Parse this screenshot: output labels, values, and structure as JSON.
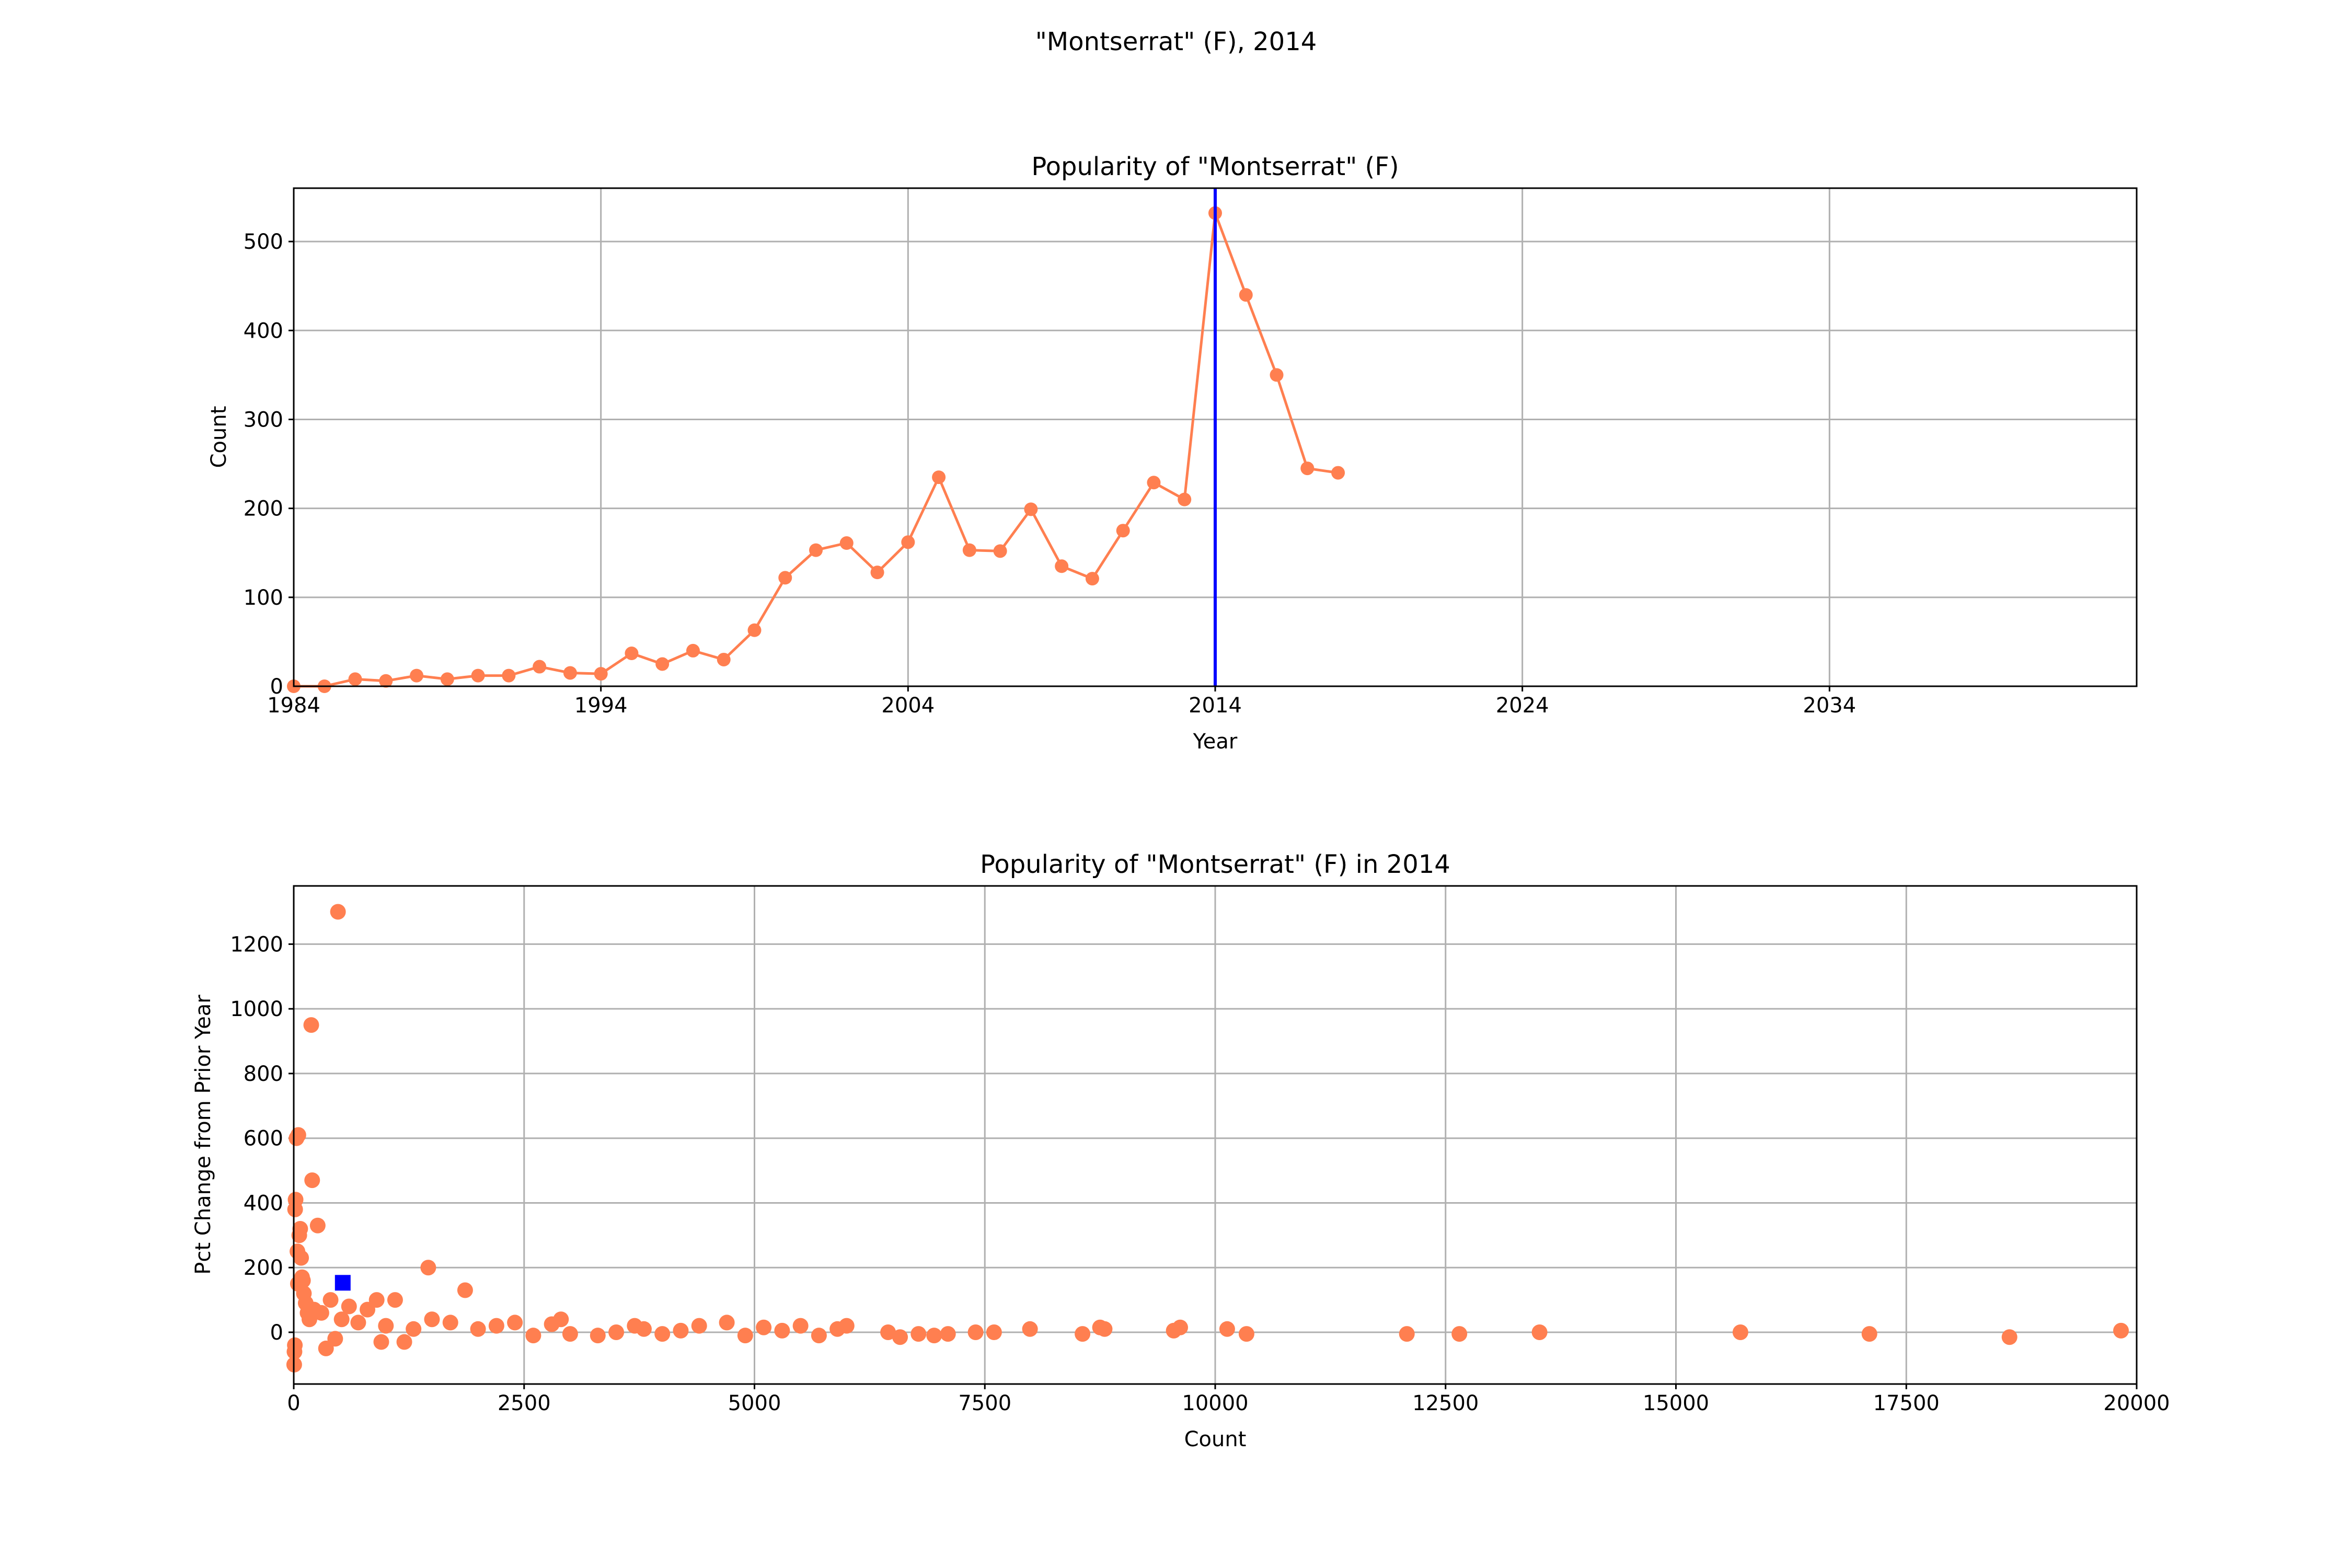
{
  "figure": {
    "suptitle": "\"Montserrat\" (F), 2014",
    "colors": {
      "series": "#ff7f50",
      "highlight": "#0000ff",
      "grid": "#b0b0b0"
    }
  },
  "chart_data": [
    {
      "type": "line",
      "title": "Popularity of \"Montserrat\" (F)",
      "xlabel": "Year",
      "ylabel": "Count",
      "xlim": [
        1984,
        2044
      ],
      "ylim": [
        0,
        560
      ],
      "xticks": [
        1984,
        1994,
        2004,
        2014,
        2024,
        2034
      ],
      "yticks": [
        0,
        100,
        200,
        300,
        400,
        500
      ],
      "grid": true,
      "highlight_x": 2014,
      "x": [
        1984,
        1985,
        1986,
        1987,
        1988,
        1989,
        1990,
        1991,
        1992,
        1993,
        1994,
        1995,
        1996,
        1997,
        1998,
        1999,
        2000,
        2001,
        2002,
        2003,
        2004,
        2005,
        2006,
        2007,
        2008,
        2009,
        2010,
        2011,
        2012,
        2013,
        2014,
        2015,
        2016,
        2017,
        2018
      ],
      "y": [
        0,
        0,
        8,
        6,
        12,
        8,
        12,
        12,
        22,
        15,
        14,
        37,
        25,
        40,
        30,
        63,
        122,
        153,
        161,
        128,
        162,
        235,
        153,
        152,
        199,
        135,
        121,
        175,
        229,
        210,
        532,
        440,
        350,
        245,
        240
      ]
    },
    {
      "type": "scatter",
      "title": "Popularity of \"Montserrat\" (F) in 2014",
      "xlabel": "Count",
      "ylabel": "Pct Change from Prior Year",
      "xlim": [
        0,
        20000
      ],
      "ylim": [
        -160,
        1380
      ],
      "xticks": [
        0,
        2500,
        5000,
        7500,
        10000,
        12500,
        15000,
        17500,
        20000
      ],
      "yticks": [
        0,
        200,
        400,
        600,
        800,
        1000,
        1200
      ],
      "grid": true,
      "highlight_point": [
        532,
        153
      ],
      "points": [
        [
          5,
          -100
        ],
        [
          8,
          -60
        ],
        [
          12,
          -40
        ],
        [
          15,
          380
        ],
        [
          20,
          410
        ],
        [
          30,
          600
        ],
        [
          40,
          250
        ],
        [
          45,
          150
        ],
        [
          50,
          610
        ],
        [
          60,
          300
        ],
        [
          70,
          320
        ],
        [
          80,
          230
        ],
        [
          90,
          170
        ],
        [
          100,
          160
        ],
        [
          110,
          120
        ],
        [
          130,
          90
        ],
        [
          150,
          60
        ],
        [
          170,
          40
        ],
        [
          190,
          950
        ],
        [
          200,
          470
        ],
        [
          220,
          70
        ],
        [
          260,
          330
        ],
        [
          300,
          60
        ],
        [
          350,
          -50
        ],
        [
          400,
          100
        ],
        [
          450,
          -20
        ],
        [
          480,
          1300
        ],
        [
          520,
          40
        ],
        [
          600,
          80
        ],
        [
          700,
          30
        ],
        [
          800,
          70
        ],
        [
          900,
          100
        ],
        [
          950,
          -30
        ],
        [
          1000,
          20
        ],
        [
          1100,
          100
        ],
        [
          1200,
          -30
        ],
        [
          1300,
          10
        ],
        [
          1460,
          200
        ],
        [
          1500,
          40
        ],
        [
          1700,
          30
        ],
        [
          1860,
          130
        ],
        [
          2000,
          10
        ],
        [
          2200,
          20
        ],
        [
          2400,
          30
        ],
        [
          2600,
          -10
        ],
        [
          2800,
          25
        ],
        [
          2900,
          40
        ],
        [
          3000,
          -5
        ],
        [
          3300,
          -10
        ],
        [
          3500,
          0
        ],
        [
          3700,
          20
        ],
        [
          3800,
          10
        ],
        [
          4000,
          -5
        ],
        [
          4200,
          5
        ],
        [
          4400,
          20
        ],
        [
          4700,
          30
        ],
        [
          4900,
          -10
        ],
        [
          5100,
          15
        ],
        [
          5300,
          5
        ],
        [
          5500,
          20
        ],
        [
          5700,
          -10
        ],
        [
          5900,
          10
        ],
        [
          6000,
          20
        ],
        [
          6450,
          0
        ],
        [
          6580,
          -15
        ],
        [
          6780,
          -5
        ],
        [
          6950,
          -10
        ],
        [
          7100,
          -5
        ],
        [
          7400,
          0
        ],
        [
          7600,
          0
        ],
        [
          7990,
          10
        ],
        [
          8560,
          -5
        ],
        [
          8750,
          15
        ],
        [
          8800,
          10
        ],
        [
          9550,
          5
        ],
        [
          9620,
          15
        ],
        [
          10130,
          10
        ],
        [
          10340,
          -5
        ],
        [
          12080,
          -5
        ],
        [
          12650,
          -5
        ],
        [
          13520,
          0
        ],
        [
          15700,
          0
        ],
        [
          17100,
          -5
        ],
        [
          18620,
          -15
        ],
        [
          19830,
          5
        ]
      ]
    }
  ]
}
